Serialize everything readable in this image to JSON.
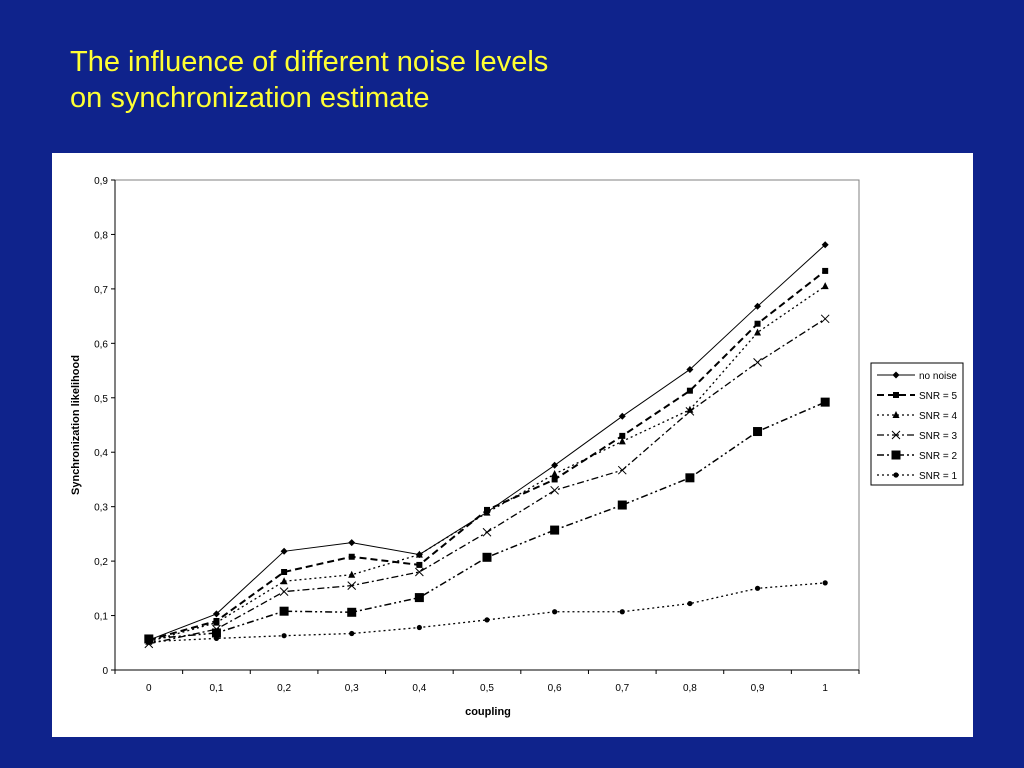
{
  "slide": {
    "title_line1": "The influence of different noise levels",
    "title_line2": "on synchronization estimate"
  },
  "chart_data": {
    "type": "line",
    "xlabel": "coupling",
    "ylabel": "Synchronization likelihood",
    "x": [
      0,
      0.1,
      0.2,
      0.3,
      0.4,
      0.5,
      0.6,
      0.7,
      0.8,
      0.9,
      1
    ],
    "x_tick_labels": [
      "0",
      "0,1",
      "0,2",
      "0,3",
      "0,4",
      "0,5",
      "0,6",
      "0,7",
      "0,8",
      "0,9",
      "1"
    ],
    "ylim": [
      0,
      0.9
    ],
    "y_ticks": [
      0,
      0.1,
      0.2,
      0.3,
      0.4,
      0.5,
      0.6,
      0.7,
      0.8,
      0.9
    ],
    "y_tick_labels": [
      "0",
      "0,1",
      "0,2",
      "0,3",
      "0,4",
      "0,5",
      "0,6",
      "0,7",
      "0,8",
      "0,9"
    ],
    "grid": false,
    "legend_position": "right",
    "series": [
      {
        "name": "no noise",
        "marker": "diamond",
        "dash": "solid",
        "values": [
          0.055,
          0.103,
          0.218,
          0.234,
          0.212,
          0.29,
          0.376,
          0.466,
          0.552,
          0.668,
          0.781
        ]
      },
      {
        "name": "SNR = 5",
        "marker": "square-small",
        "dash": "dashed",
        "values": [
          0.055,
          0.09,
          0.18,
          0.208,
          0.193,
          0.294,
          0.35,
          0.43,
          0.513,
          0.636,
          0.733
        ]
      },
      {
        "name": "SNR = 4",
        "marker": "triangle",
        "dash": "dotted",
        "values": [
          0.052,
          0.087,
          0.163,
          0.175,
          0.212,
          0.289,
          0.36,
          0.42,
          0.478,
          0.62,
          0.705
        ]
      },
      {
        "name": "SNR = 3",
        "marker": "cross",
        "dash": "dash-dot",
        "values": [
          0.048,
          0.075,
          0.144,
          0.155,
          0.18,
          0.253,
          0.33,
          0.367,
          0.475,
          0.565,
          0.645
        ]
      },
      {
        "name": "SNR = 2",
        "marker": "square-large",
        "dash": "dash-dot-dot",
        "values": [
          0.057,
          0.068,
          0.108,
          0.106,
          0.133,
          0.207,
          0.257,
          0.303,
          0.353,
          0.438,
          0.492
        ]
      },
      {
        "name": "SNR = 1",
        "marker": "circle",
        "dash": "dotted",
        "values": [
          0.052,
          0.058,
          0.063,
          0.067,
          0.078,
          0.092,
          0.107,
          0.107,
          0.122,
          0.15,
          0.16
        ]
      }
    ]
  }
}
